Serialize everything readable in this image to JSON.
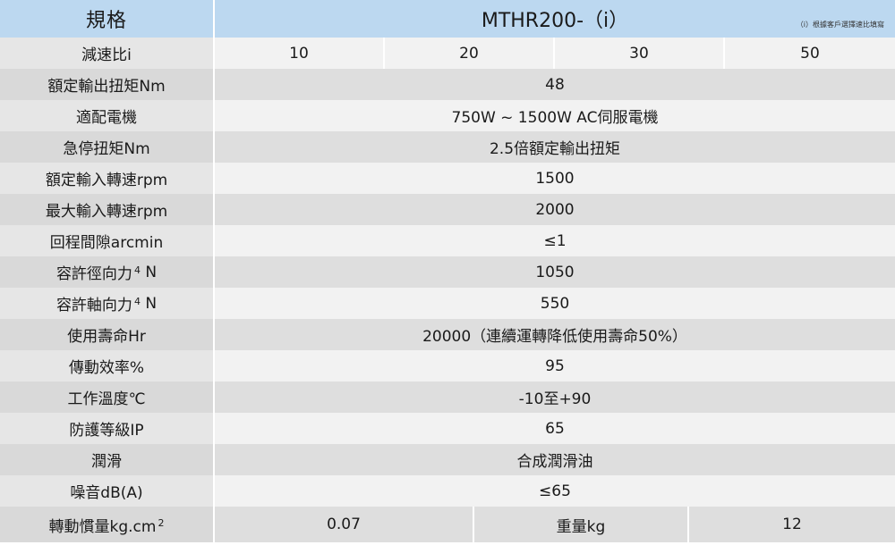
{
  "header": {
    "spec_label": "規格",
    "model": "MTHR200-（i）",
    "note": "（i）根據客戶選擇速比填寫"
  },
  "ratio_row": {
    "label": "減速比i",
    "values": [
      "10",
      "20",
      "30",
      "50"
    ]
  },
  "rows": [
    {
      "label": "額定輸出扭矩Nm",
      "value": "48"
    },
    {
      "label": "適配電機",
      "value": "750W ~ 1500W AC伺服電機"
    },
    {
      "label": "急停扭矩Nm",
      "value": "2.5倍額定輸出扭矩"
    },
    {
      "label": "額定輸入轉速rpm",
      "value": "1500"
    },
    {
      "label": "最大輸入轉速rpm",
      "value": "2000"
    },
    {
      "label": "回程間隙arcmin",
      "value": "≤1"
    },
    {
      "label": "容許徑向力",
      "sup": "4",
      "suffix": " N",
      "value": "1050"
    },
    {
      "label": "容許軸向力",
      "sup": "4",
      "suffix": " N",
      "value": "550"
    },
    {
      "label": "使用壽命Hr",
      "value": "20000（連續運轉降低使用壽命50%）"
    },
    {
      "label": "傳動效率%",
      "value": "95"
    },
    {
      "label": "工作溫度℃",
      "value": "-10至+90"
    },
    {
      "label": "防護等級IP",
      "value": "65"
    },
    {
      "label": "潤滑",
      "value": "合成潤滑油"
    },
    {
      "label": "噪音dB(A)",
      "value": "≤65"
    }
  ],
  "inertia_row": {
    "label": "轉動慣量kg.cm",
    "sup": "2",
    "value": "0.07",
    "weight_label": "重量kg",
    "weight_value": "12"
  }
}
